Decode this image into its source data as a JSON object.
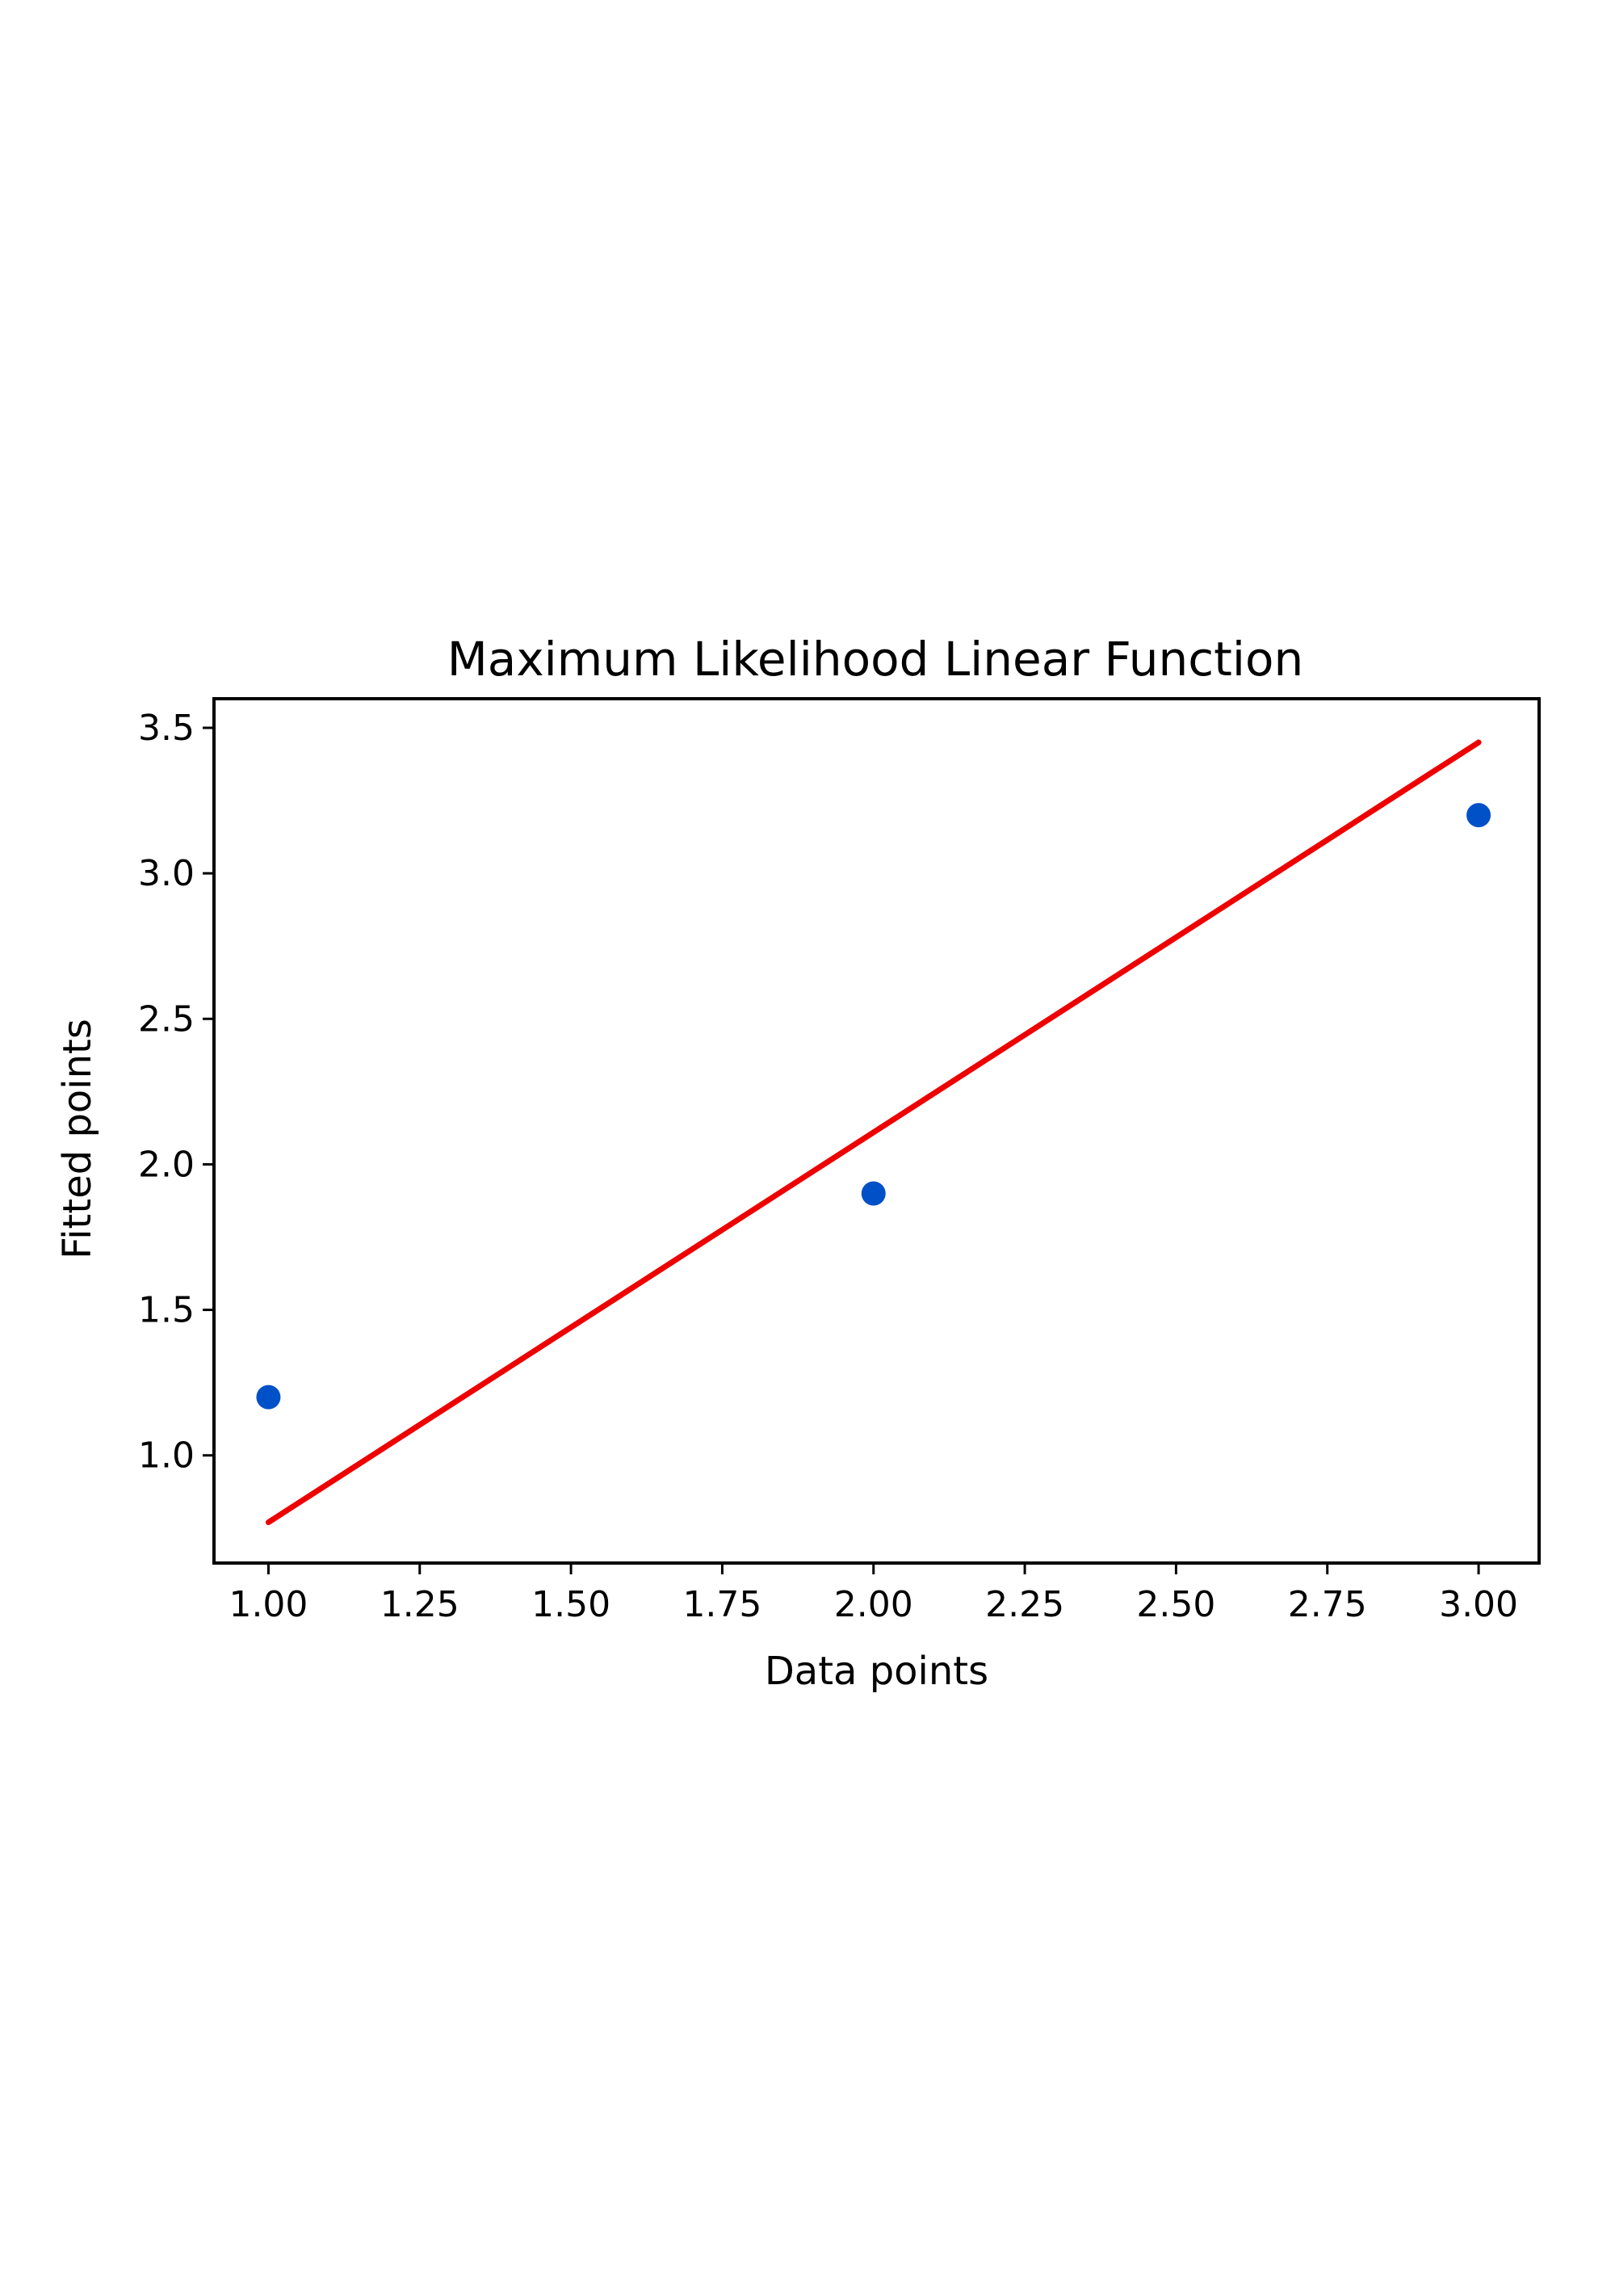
{
  "chart_data": {
    "type": "scatter",
    "title": "Maximum Likelihood Linear Function",
    "xlabel": "Data  points",
    "ylabel": "Fitted points",
    "xlim": [
      0.91,
      3.1
    ],
    "ylim": [
      0.63,
      3.6
    ],
    "xticks": [
      1.0,
      1.25,
      1.5,
      1.75,
      2.0,
      2.25,
      2.5,
      2.75,
      3.0
    ],
    "xtick_labels": [
      "1.00",
      "1.25",
      "1.50",
      "1.75",
      "2.00",
      "2.25",
      "2.50",
      "2.75",
      "3.00"
    ],
    "yticks": [
      1.0,
      1.5,
      2.0,
      2.5,
      3.0,
      3.5
    ],
    "ytick_labels": [
      "1.0",
      "1.5",
      "2.0",
      "2.5",
      "3.0",
      "3.5"
    ],
    "grid": false,
    "series": [
      {
        "kind": "scatter",
        "x": [
          1.0,
          2.0,
          3.0
        ],
        "y": [
          1.2,
          1.9,
          3.2
        ],
        "color": "#0050c8"
      },
      {
        "kind": "line",
        "x": [
          1.0,
          3.0
        ],
        "y": [
          0.77,
          3.45
        ],
        "color": "#ee0000"
      }
    ]
  }
}
